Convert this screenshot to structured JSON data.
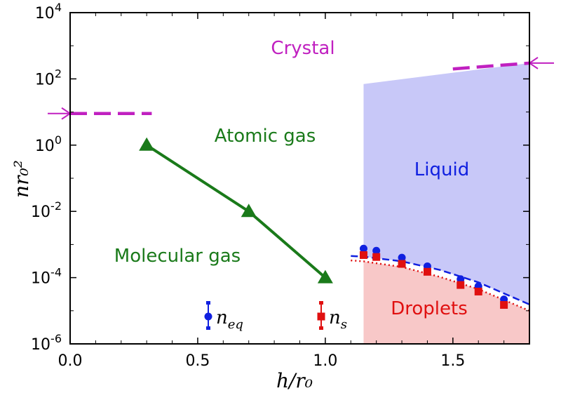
{
  "chart_data": {
    "type": "line",
    "xlabel": "h/r₀",
    "ylabel": "nr₀²",
    "xlim": [
      0,
      1.8
    ],
    "ylim_log10": [
      -6,
      4
    ],
    "y_scale": "log",
    "x_ticks": [
      "0.0",
      "0.5",
      "1.0",
      "1.5"
    ],
    "y_ticks": [
      {
        "base": "10",
        "exp": "-6"
      },
      {
        "base": "10",
        "exp": "-4"
      },
      {
        "base": "10",
        "exp": "-2"
      },
      {
        "base": "10",
        "exp": "0"
      },
      {
        "base": "10",
        "exp": "2"
      },
      {
        "base": "10",
        "exp": "4"
      }
    ],
    "regions": {
      "crystal": "Crystal",
      "atomic_gas": "Atomic gas",
      "molecular_gas": "Molecular gas",
      "liquid": "Liquid",
      "droplets": "Droplets"
    },
    "legend": {
      "n_eq": {
        "base": "n",
        "sub": "eq"
      },
      "n_s": {
        "base": "n",
        "sub": "s"
      }
    },
    "colors": {
      "green": "#1a7a1a",
      "magenta": "#c020c0",
      "blue": "#1020e0",
      "red": "#e01010",
      "liquid_fill": "#c8c8f8",
      "droplet_fill": "#f8c8c8"
    },
    "series": [
      {
        "key": "molecular_atomic_boundary",
        "color": "green",
        "marker": "triangle",
        "x": [
          0.3,
          0.7,
          1.0
        ],
        "y": [
          1.0,
          0.01,
          0.0001
        ]
      },
      {
        "key": "n_eq",
        "color": "blue",
        "marker": "circle",
        "x": [
          1.15,
          1.2,
          1.3,
          1.4,
          1.53,
          1.6,
          1.7
        ],
        "y": [
          0.00075,
          0.00065,
          0.0004,
          0.00022,
          9e-05,
          5.5e-05,
          2.2e-05
        ]
      },
      {
        "key": "n_s",
        "color": "red",
        "marker": "square",
        "x": [
          1.15,
          1.2,
          1.3,
          1.4,
          1.53,
          1.6,
          1.7
        ],
        "y": [
          0.00048,
          0.00042,
          0.00026,
          0.00015,
          6e-05,
          3.8e-05,
          1.5e-05
        ]
      }
    ],
    "fits": {
      "n_eq_fit": {
        "x": [
          1.1,
          1.15,
          1.3,
          1.45,
          1.6,
          1.8
        ],
        "y": [
          0.00045,
          0.00043,
          0.00031,
          0.00017,
          7.2e-05,
          1.55e-05
        ]
      },
      "n_s_fit": {
        "x": [
          1.1,
          1.15,
          1.3,
          1.45,
          1.6,
          1.8
        ],
        "y": [
          0.00033,
          0.00031,
          0.00021,
          0.000105,
          4.5e-05,
          1e-05
        ]
      }
    },
    "liquid_region": {
      "x_start": 1.15,
      "top_y": [
        70,
        300
      ]
    },
    "crystal_boundaries": [
      {
        "x": [
          0,
          0.32
        ],
        "y": [
          9,
          9
        ]
      },
      {
        "x": [
          1.5,
          1.8
        ],
        "y": [
          200,
          300
        ]
      }
    ]
  }
}
